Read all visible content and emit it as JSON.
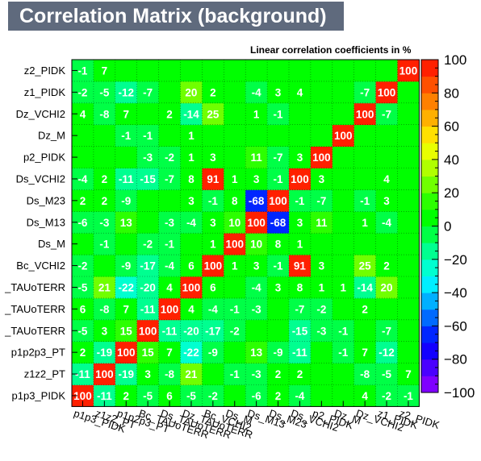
{
  "title": "Correlation Matrix (background)",
  "subtitle": "Linear correlation coefficients in %",
  "chart_data": {
    "type": "heatmap",
    "variables": [
      "p1p3_PIDK",
      "z1z2_PT",
      "p1p2p3_PT",
      "Bc_TAUoTERR",
      "Ds_TAUoTERR",
      "Dz_TAUoTERR",
      "Bc_VCHI2",
      "Ds_M",
      "Ds_M13",
      "Ds_M23",
      "Ds_VCHI2",
      "p2_PIDK",
      "Dz_M",
      "Dz_VCHI2",
      "z1_PIDK",
      "z2_PIDK"
    ],
    "row_labels": [
      "p1p3_PIDK",
      "z1z2_PT",
      "p1p2p3_PT",
      "_TAUoTERR",
      "_TAUoTERR",
      "_TAUoTERR",
      "Bc_VCHI2",
      "Ds_M",
      "Ds_M13",
      "Ds_M23",
      "Ds_VCHI2",
      "p2_PIDK",
      "Dz_M",
      "Dz_VCHI2",
      "z1_PIDK",
      "z2_PIDK"
    ],
    "col_labels": [
      "p1p3_PIDK",
      "z1z2_PT",
      "p1p2p3_PT",
      "Bc_TAUoTERR",
      "Ds_TAUoTERR",
      "Dz_TAUoTERR",
      "Bc_VCHI2",
      "Ds_M",
      "Ds_M13",
      "Ds_M23",
      "Ds_VCHI2",
      "p2_PIDK",
      "Dz_M",
      "Dz_VCHI2",
      "z1_PIDK",
      "z2_PIDK"
    ],
    "matrix": [
      [
        100,
        -11,
        2,
        -5,
        6,
        -5,
        -2,
        0,
        -6,
        2,
        -4,
        0,
        0,
        4,
        -2,
        -1
      ],
      [
        -11,
        100,
        -19,
        3,
        -8,
        21,
        0,
        -1,
        -3,
        2,
        2,
        0,
        0,
        -8,
        -5,
        7
      ],
      [
        2,
        -19,
        100,
        15,
        7,
        -22,
        -9,
        0,
        13,
        -9,
        -11,
        0,
        -1,
        7,
        -12,
        0
      ],
      [
        -5,
        3,
        15,
        100,
        -11,
        -20,
        -17,
        -2,
        0,
        0,
        -15,
        -3,
        -1,
        0,
        -7,
        0
      ],
      [
        6,
        -8,
        7,
        -11,
        100,
        4,
        -4,
        -1,
        -3,
        0,
        -7,
        -2,
        0,
        2,
        0,
        0
      ],
      [
        -5,
        21,
        -22,
        -20,
        4,
        100,
        6,
        0,
        -4,
        3,
        8,
        1,
        1,
        -14,
        20,
        0
      ],
      [
        -2,
        0,
        -9,
        -17,
        -4,
        6,
        100,
        1,
        3,
        -1,
        91,
        3,
        0,
        25,
        2,
        0
      ],
      [
        0,
        -1,
        0,
        -2,
        -1,
        0,
        1,
        100,
        10,
        8,
        1,
        0,
        0,
        0,
        0,
        0
      ],
      [
        -6,
        -3,
        13,
        0,
        -3,
        -4,
        3,
        10,
        100,
        -68,
        3,
        11,
        0,
        1,
        -4,
        0
      ],
      [
        2,
        2,
        -9,
        0,
        0,
        3,
        -1,
        8,
        -68,
        100,
        -1,
        -7,
        0,
        -1,
        3,
        0
      ],
      [
        -4,
        2,
        -11,
        -15,
        -7,
        8,
        91,
        1,
        3,
        -1,
        100,
        3,
        0,
        0,
        4,
        0
      ],
      [
        0,
        0,
        0,
        -3,
        -2,
        1,
        3,
        0,
        11,
        -7,
        3,
        100,
        0,
        0,
        0,
        0
      ],
      [
        0,
        0,
        -1,
        -1,
        0,
        1,
        0,
        0,
        0,
        0,
        0,
        0,
        100,
        0,
        0,
        0
      ],
      [
        4,
        -8,
        7,
        0,
        2,
        -14,
        25,
        0,
        1,
        -1,
        0,
        0,
        0,
        100,
        -7,
        0
      ],
      [
        -2,
        -5,
        -12,
        -7,
        0,
        20,
        2,
        0,
        -4,
        3,
        4,
        0,
        0,
        -7,
        100,
        0
      ],
      [
        -1,
        7,
        0,
        0,
        0,
        0,
        0,
        0,
        0,
        0,
        0,
        0,
        0,
        0,
        0,
        100
      ]
    ],
    "zlim": [
      -100,
      100
    ],
    "colorbar_ticks": [
      100,
      80,
      60,
      40,
      20,
      0,
      -20,
      -40,
      -60,
      -80,
      -100
    ],
    "grid": true,
    "colors": {
      "page_background": "#ffffff",
      "title_background": "#5f6a7d",
      "title_text": "#ffffff",
      "cell_text": "#ffffff",
      "palette": [
        "#7f00ff",
        "#4a00ff",
        "#1300ff",
        "#0026ff",
        "#006aff",
        "#00b0ff",
        "#00eeff",
        "#00ffd0",
        "#00ff90",
        "#00ff46",
        "#00ff00",
        "#2cff00",
        "#70ff00",
        "#b0ff00",
        "#e8ff00",
        "#ffe000",
        "#ffb000",
        "#ff8000",
        "#ff5000",
        "#ff2000"
      ]
    }
  }
}
